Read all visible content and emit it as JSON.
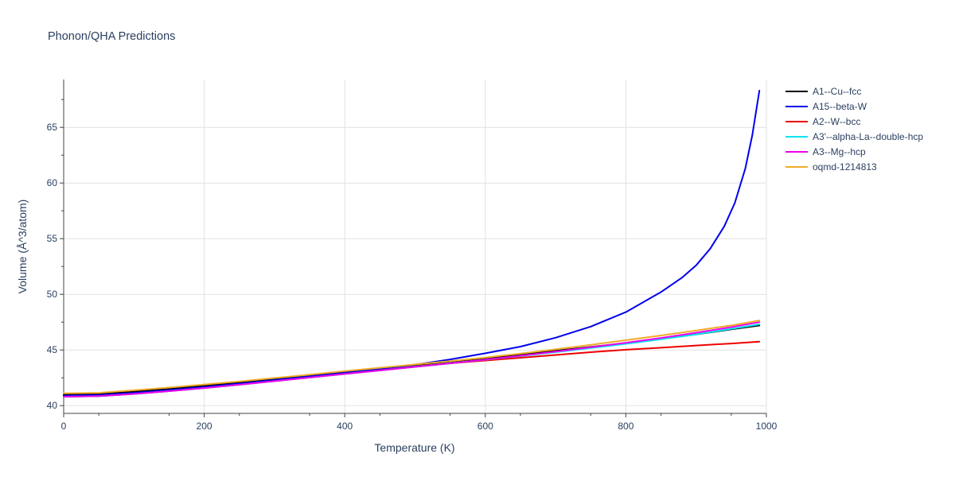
{
  "chart_data": {
    "type": "line",
    "title": "Phonon/QHA Predictions",
    "xlabel": "Temperature (K)",
    "ylabel": "Volume (Å^3/atom)",
    "xlim": [
      0,
      1000
    ],
    "ylim": [
      39.3,
      69.3
    ],
    "xticks": [
      0,
      200,
      400,
      600,
      800,
      1000
    ],
    "yticks": [
      40,
      45,
      50,
      55,
      60,
      65
    ],
    "grid": true,
    "legend_position": "top-right",
    "series": [
      {
        "name": "A1--Cu--fcc",
        "color": "#000000",
        "x": [
          0,
          50,
          100,
          150,
          200,
          250,
          300,
          350,
          400,
          450,
          500,
          550,
          600,
          650,
          700,
          750,
          800,
          850,
          900,
          950,
          990
        ],
        "y": [
          41.0,
          41.05,
          41.25,
          41.5,
          41.78,
          42.07,
          42.37,
          42.69,
          43.01,
          43.33,
          43.65,
          43.96,
          44.26,
          44.58,
          44.92,
          45.27,
          45.62,
          46.0,
          46.4,
          46.85,
          47.2
        ]
      },
      {
        "name": "A15--beta-W",
        "color": "#0000ee",
        "x": [
          0,
          50,
          100,
          150,
          200,
          250,
          300,
          350,
          400,
          450,
          500,
          550,
          600,
          650,
          700,
          750,
          800,
          850,
          880,
          900,
          920,
          940,
          955,
          970,
          980,
          990
        ],
        "y": [
          40.9,
          40.95,
          41.15,
          41.4,
          41.68,
          41.98,
          42.3,
          42.62,
          42.95,
          43.3,
          43.68,
          44.15,
          44.7,
          45.3,
          46.1,
          47.1,
          48.4,
          50.2,
          51.5,
          52.6,
          54.1,
          56.1,
          58.2,
          61.3,
          64.3,
          68.3
        ]
      },
      {
        "name": "A2--W--bcc",
        "color": "#ee0000",
        "x": [
          0,
          50,
          100,
          150,
          200,
          250,
          300,
          350,
          400,
          450,
          500,
          550,
          600,
          650,
          700,
          750,
          800,
          850,
          900,
          950,
          990
        ],
        "y": [
          40.8,
          40.85,
          41.05,
          41.3,
          41.58,
          41.88,
          42.2,
          42.52,
          42.85,
          43.18,
          43.5,
          43.8,
          44.05,
          44.3,
          44.55,
          44.8,
          45.02,
          45.2,
          45.4,
          45.58,
          45.75
        ]
      },
      {
        "name": "A3'--alpha-La--double-hcp",
        "color": "#00e5ee",
        "x": [
          0,
          50,
          100,
          150,
          200,
          250,
          300,
          350,
          400,
          450,
          500,
          550,
          600,
          650,
          700,
          750,
          800,
          850,
          900,
          950,
          990
        ],
        "y": [
          40.8,
          40.85,
          41.05,
          41.3,
          41.58,
          41.88,
          42.2,
          42.52,
          42.84,
          43.16,
          43.48,
          43.8,
          44.12,
          44.45,
          44.8,
          45.17,
          45.55,
          45.96,
          46.4,
          46.9,
          47.3
        ]
      },
      {
        "name": "A3--Mg--hcp",
        "color": "#ee00ee",
        "x": [
          0,
          50,
          100,
          150,
          200,
          250,
          300,
          350,
          400,
          450,
          500,
          550,
          600,
          650,
          700,
          750,
          800,
          850,
          900,
          950,
          990
        ],
        "y": [
          40.8,
          40.85,
          41.05,
          41.3,
          41.58,
          41.88,
          42.2,
          42.52,
          42.84,
          43.16,
          43.48,
          43.8,
          44.13,
          44.48,
          44.85,
          45.24,
          45.65,
          46.08,
          46.55,
          47.05,
          47.5
        ]
      },
      {
        "name": "oqmd-1214813",
        "color": "#f0ab2a",
        "x": [
          0,
          50,
          100,
          150,
          200,
          250,
          300,
          350,
          400,
          450,
          500,
          550,
          600,
          650,
          700,
          750,
          800,
          850,
          900,
          950,
          990
        ],
        "y": [
          41.1,
          41.15,
          41.38,
          41.62,
          41.9,
          42.18,
          42.48,
          42.78,
          43.1,
          43.4,
          43.7,
          44.0,
          44.32,
          44.68,
          45.06,
          45.46,
          45.88,
          46.3,
          46.75,
          47.2,
          47.65
        ]
      }
    ]
  }
}
